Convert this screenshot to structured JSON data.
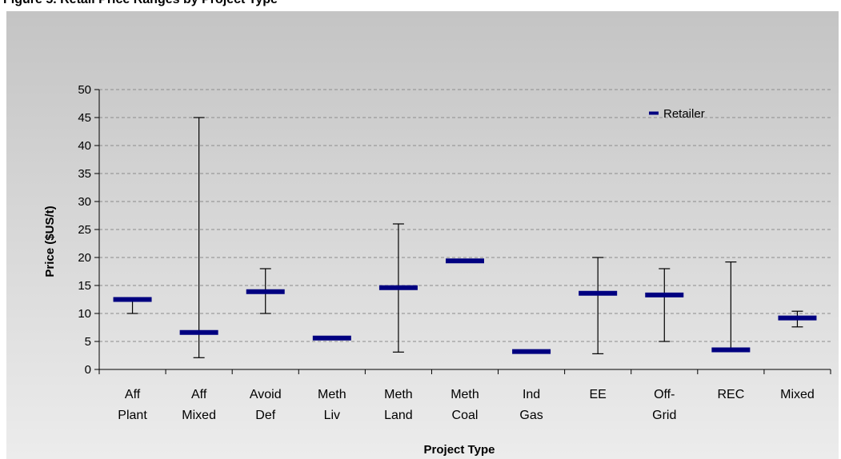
{
  "page_header": "Figure 5. Retail Price Ranges by Project Type",
  "chart_data": {
    "type": "error-bar",
    "xlabel": "Project Type",
    "ylabel": "Price ($US/t)",
    "ylim": [
      0,
      50
    ],
    "ytick_step": 5,
    "grid": true,
    "legend_position": "top-right",
    "categories": [
      [
        "Aff",
        "Plant"
      ],
      [
        "Aff",
        "Mixed"
      ],
      [
        "Avoid",
        "Def"
      ],
      [
        "Meth",
        "Liv"
      ],
      [
        "Meth",
        "Land"
      ],
      [
        "Meth",
        "Coal"
      ],
      [
        "Ind",
        "Gas"
      ],
      [
        "EE"
      ],
      [
        "Off-",
        "Grid"
      ],
      [
        "REC"
      ],
      [
        "Mixed"
      ]
    ],
    "series": [
      {
        "name": "Retailer",
        "color": "#000080",
        "values": [
          12.5,
          6.6,
          13.9,
          5.6,
          14.6,
          19.4,
          3.2,
          13.6,
          13.3,
          3.5,
          9.2
        ],
        "low": [
          10,
          2.1,
          10,
          null,
          3.1,
          null,
          null,
          2.8,
          5,
          null,
          7.6
        ],
        "high": [
          null,
          45,
          18,
          null,
          26,
          null,
          null,
          20,
          18,
          19.2,
          10.4
        ]
      }
    ]
  }
}
